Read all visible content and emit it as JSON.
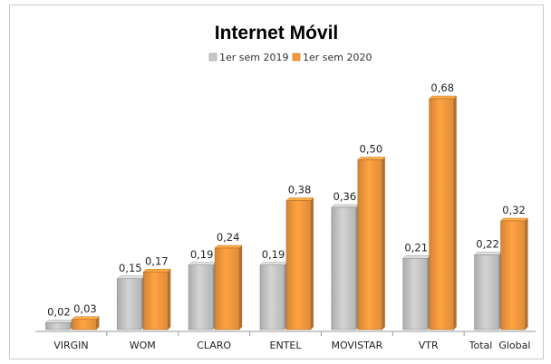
{
  "chart_data": {
    "type": "bar",
    "title": "Internet Móvil",
    "categories": [
      "VIRGIN",
      "WOM",
      "CLARO",
      "ENTEL",
      "MOVISTAR",
      "VTR",
      "Total  Global"
    ],
    "series": [
      {
        "name": "1er sem 2019",
        "color": "#c8c8c8",
        "values": [
          0.02,
          0.15,
          0.19,
          0.19,
          0.36,
          0.21,
          0.22
        ],
        "labels": [
          "0,02",
          "0,15",
          "0,19",
          "0,19",
          "0,36",
          "0,21",
          "0,22"
        ]
      },
      {
        "name": "1er sem 2020",
        "color": "#f79a3e",
        "values": [
          0.03,
          0.17,
          0.24,
          0.38,
          0.5,
          0.68,
          0.32
        ],
        "labels": [
          "0,03",
          "0,17",
          "0,24",
          "0,38",
          "0,50",
          "0,68",
          "0,32"
        ]
      }
    ],
    "ylim": [
      0,
      0.72
    ],
    "legend_position": "top-center",
    "grid": false,
    "style": "3d-bars"
  }
}
